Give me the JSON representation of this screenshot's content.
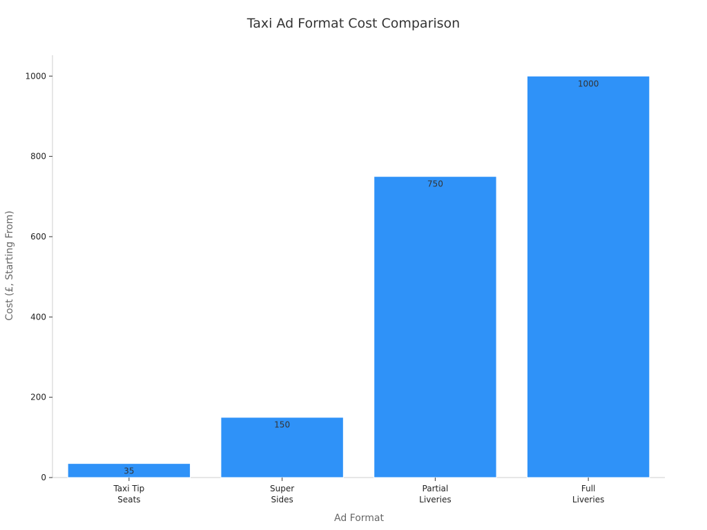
{
  "chart_data": {
    "type": "bar",
    "title": "Taxi Ad Format Cost Comparison",
    "xlabel": "Ad Format",
    "ylabel": "Cost (£, Starting From)",
    "categories": [
      [
        "Taxi Tip",
        "Seats"
      ],
      [
        "Super",
        "Sides"
      ],
      [
        "Partial",
        "Liveries"
      ],
      [
        "Full",
        "Liveries"
      ]
    ],
    "values": [
      35,
      150,
      750,
      1000
    ],
    "data_labels": [
      "35",
      "150",
      "750",
      "1000"
    ],
    "yticks": [
      0,
      200,
      400,
      600,
      800,
      1000
    ],
    "ylim": [
      0,
      1052
    ],
    "grid": false,
    "legend": "none",
    "colors": {
      "bar": "#2f92f8"
    }
  }
}
